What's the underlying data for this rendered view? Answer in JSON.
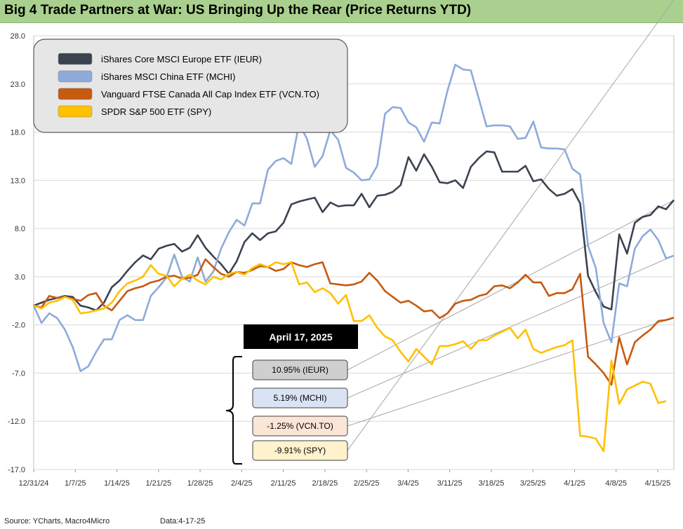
{
  "title": "Big 4 Trade Partners at War: US Bringing Up the Rear (Price Returns YTD)",
  "footer": {
    "source": "Source: YCharts, Macro4Micro",
    "date": "Data:4-17-25"
  },
  "date_box": "April 17, 2025",
  "callouts": [
    {
      "text": "10.95% (IEUR)",
      "fill": "#d0cece"
    },
    {
      "text": "5.19% (MCHI)",
      "fill": "#dae3f3"
    },
    {
      "text": "-1.25% (VCN.TO)",
      "fill": "#fbe5d6"
    },
    {
      "text": "-9.91% (SPY)",
      "fill": "#fff2cc"
    }
  ],
  "chart_data": {
    "type": "line",
    "ylim": [
      -17,
      28
    ],
    "y_ticks": [
      "28.0",
      "23.0",
      "18.0",
      "13.0",
      "8.0",
      "3.0",
      "-2.0",
      "-7.0",
      "-12.0",
      "-17.0"
    ],
    "x_ticks": [
      "12/31/24",
      "1/7/25",
      "1/14/25",
      "1/21/25",
      "1/28/25",
      "2/4/25",
      "2/11/25",
      "2/18/25",
      "2/25/25",
      "3/4/25",
      "3/11/25",
      "3/18/25",
      "3/25/25",
      "4/1/25",
      "4/8/25",
      "4/15/25"
    ],
    "grid": "horizontal",
    "legend_position": "top-left",
    "series": [
      {
        "name": "iShares Core MSCI Europe ETF (IEUR)",
        "color": "#3b4350",
        "values": [
          0,
          0.3,
          0.6,
          0.8,
          1.0,
          0.9,
          0,
          -0.2,
          -0.5,
          0.3,
          1.9,
          2.6,
          3.6,
          4.5,
          5.2,
          4.8,
          5.9,
          6.2,
          6.4,
          5.6,
          6.0,
          7.3,
          6.0,
          5.1,
          4.3,
          3.3,
          4.6,
          6.6,
          7.5,
          6.8,
          7.5,
          7.7,
          8.6,
          10.5,
          10.8,
          11.0,
          11.2,
          9.7,
          10.7,
          10.3,
          10.4,
          10.4,
          11.6,
          10.2,
          11.4,
          11.5,
          11.8,
          12.5,
          15.4,
          14.0,
          15.7,
          14.4,
          12.8,
          12.7,
          13.0,
          12.2,
          14.4,
          15.3,
          16.0,
          15.9,
          13.9,
          13.9,
          13.9,
          14.5,
          12.9,
          13.1,
          12.1,
          11.4,
          11.6,
          12.1,
          10.6,
          3.1,
          1.4,
          -0.1,
          -0.4,
          7.4,
          5.4,
          8.6,
          9.2,
          9.4,
          10.3,
          10.0,
          10.95
        ]
      },
      {
        "name": "iShares MSCI China ETF (MCHI)",
        "color": "#8eaadb",
        "values": [
          0,
          -1.8,
          -0.8,
          -1.3,
          -2.5,
          -4.3,
          -6.8,
          -6.3,
          -4.8,
          -3.5,
          -3.5,
          -1.5,
          -1.0,
          -1.5,
          -1.5,
          1.0,
          1.9,
          2.9,
          5.3,
          3.0,
          2.5,
          5.0,
          2.5,
          3.5,
          5.9,
          7.6,
          8.9,
          8.3,
          10.6,
          10.6,
          14.1,
          15.0,
          15.3,
          14.7,
          18.9,
          17.3,
          14.4,
          15.5,
          18.2,
          17.2,
          14.3,
          13.8,
          13.0,
          13.1,
          14.5,
          19.9,
          20.6,
          20.5,
          19.0,
          18.5,
          17.0,
          19.0,
          18.9,
          22.3,
          25.0,
          24.5,
          24.4,
          21.5,
          18.6,
          18.7,
          18.7,
          18.6,
          17.3,
          17.4,
          19.1,
          16.4,
          16.3,
          16.3,
          16.2,
          14.2,
          13.6,
          6.2,
          3.9,
          -1.8,
          -3.8,
          2.3,
          2.0,
          5.9,
          7.2,
          7.9,
          6.8,
          4.9,
          5.19
        ]
      },
      {
        "name": "Vanguard FTSE Canada All Cap Index ETF (VCN.TO)",
        "color": "#c55a11",
        "values": [
          0,
          -0.2,
          1.0,
          0.8,
          0.9,
          0.7,
          0.5,
          1.1,
          1.3,
          0,
          -0.5,
          0.5,
          1.5,
          1.8,
          2.0,
          2.4,
          2.6,
          3.0,
          3.1,
          2.8,
          2.9,
          3.2,
          4.8,
          4.0,
          3.3,
          3.0,
          3.5,
          3.4,
          3.7,
          4.1,
          4.0,
          3.6,
          3.8,
          4.5,
          4.2,
          4.0,
          4.3,
          4.5,
          2.3,
          2.2,
          2.1,
          2.2,
          2.5,
          3.4,
          2.6,
          1.5,
          0.9,
          0.3,
          0.5,
          0,
          -0.6,
          -0.5,
          -1.3,
          -0.8,
          0.2,
          0.5,
          0.6,
          1.0,
          1.2,
          2.0,
          2.1,
          1.8,
          2.4,
          3.2,
          2.4,
          2.4,
          1.0,
          1.3,
          1.3,
          1.7,
          3.3,
          -5.3,
          -6.1,
          -7.0,
          -8.2,
          -3.3,
          -6.1,
          -3.8,
          -3.1,
          -2.5,
          -1.6,
          -1.5,
          -1.25
        ]
      },
      {
        "name": "SPDR S&P 500 ETF (SPY)",
        "color": "#ffc000",
        "values": [
          0,
          -0.3,
          0.3,
          0.5,
          0.9,
          0.6,
          -0.8,
          -0.7,
          -0.5,
          -0.3,
          0.3,
          1.5,
          2.3,
          2.6,
          3.0,
          4.2,
          3.3,
          3.1,
          2.0,
          2.8,
          3.2,
          2.6,
          2.2,
          3.0,
          2.7,
          3.3,
          3.5,
          3.2,
          3.9,
          4.3,
          4.0,
          4.5,
          4.3,
          4.5,
          2.2,
          2.4,
          1.4,
          1.8,
          1.3,
          0.2,
          1.1,
          -1.6,
          -1.6,
          -1.0,
          -2.3,
          -3.2,
          -3.6,
          -4.8,
          -5.8,
          -4.5,
          -5.3,
          -6.1,
          -4.2,
          -4.2,
          -4.0,
          -3.7,
          -4.5,
          -3.6,
          -3.6,
          -3.1,
          -2.7,
          -2.3,
          -3.4,
          -2.5,
          -4.5,
          -4.9,
          -4.6,
          -4.3,
          -4.1,
          -3.6,
          -13.5,
          -13.6,
          -13.8,
          -15.1,
          -5.7,
          -10.2,
          -8.7,
          -8.3,
          -7.9,
          -8.1,
          -10.1,
          -9.91
        ]
      }
    ]
  }
}
